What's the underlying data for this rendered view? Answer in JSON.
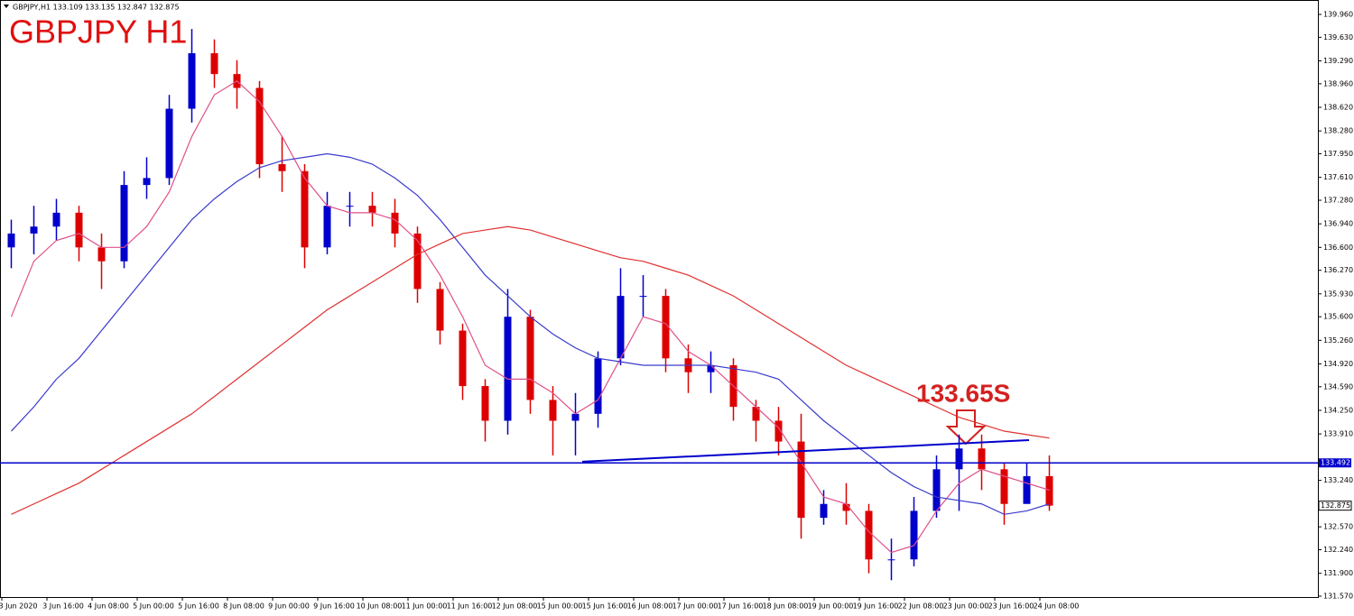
{
  "chart_data": {
    "type": "candlestick",
    "title": "GBPJPY H1",
    "header": "GBPJPY,H1  133.109 133.135 132.847 132.875",
    "annotation": "133.65S",
    "candles": {
      "open": [
        136.6,
        136.8,
        136.9,
        137.1,
        136.6,
        136.4,
        137.5,
        137.6,
        138.6,
        139.4,
        139.1,
        138.9,
        137.8,
        137.7,
        136.6,
        137.2,
        137.2,
        137.1,
        136.8,
        136.0,
        135.4,
        134.6,
        134.1,
        135.6,
        134.4,
        134.1,
        134.2,
        135.0,
        135.9,
        135.9,
        135.0,
        134.8,
        134.9,
        134.3,
        134.1,
        133.8,
        132.7,
        132.9,
        132.8,
        132.1,
        132.1,
        132.8,
        133.4,
        133.7,
        133.4,
        132.9,
        133.3
      ],
      "high": [
        137.0,
        137.2,
        137.3,
        137.2,
        136.8,
        137.7,
        137.9,
        138.8,
        139.75,
        139.6,
        139.3,
        139.0,
        138.2,
        137.8,
        137.4,
        137.4,
        137.4,
        137.3,
        136.9,
        136.1,
        135.5,
        134.7,
        136.0,
        135.7,
        134.6,
        134.5,
        135.1,
        136.3,
        136.2,
        136.0,
        135.2,
        135.1,
        135.0,
        134.4,
        134.3,
        134.2,
        133.1,
        133.2,
        132.9,
        132.4,
        133.0,
        133.6,
        133.9,
        133.9,
        133.5,
        133.5,
        133.6
      ],
      "low": [
        136.3,
        136.5,
        136.7,
        136.4,
        136.0,
        136.3,
        137.3,
        137.5,
        138.4,
        138.9,
        138.6,
        137.6,
        137.4,
        136.3,
        136.5,
        136.9,
        136.9,
        136.6,
        135.8,
        135.2,
        134.4,
        133.8,
        133.9,
        134.2,
        133.6,
        133.6,
        134.0,
        134.9,
        135.6,
        134.8,
        134.5,
        134.5,
        134.1,
        133.8,
        133.6,
        132.4,
        132.6,
        132.6,
        131.9,
        131.8,
        132.0,
        132.7,
        132.8,
        133.1,
        132.6,
        133.0,
        132.8
      ],
      "close": [
        136.8,
        136.9,
        137.1,
        136.6,
        136.4,
        137.5,
        137.6,
        138.6,
        139.4,
        139.1,
        138.9,
        137.8,
        137.7,
        136.6,
        137.2,
        137.2,
        137.1,
        136.8,
        136.0,
        135.4,
        134.6,
        134.1,
        135.6,
        134.4,
        134.1,
        134.2,
        135.0,
        135.9,
        135.9,
        135.0,
        134.8,
        134.9,
        134.3,
        134.1,
        133.8,
        132.7,
        132.9,
        132.8,
        132.1,
        132.1,
        132.8,
        133.4,
        133.7,
        133.4,
        132.9,
        133.3,
        132.875
      ],
      "up_color": "#0000cc",
      "down_color": "#dd0000"
    },
    "series": [
      {
        "color": "#e0508a",
        "values": [
          135.6,
          136.4,
          136.7,
          136.8,
          136.6,
          136.6,
          136.9,
          137.4,
          138.2,
          138.8,
          139.0,
          138.7,
          138.2,
          137.6,
          137.2,
          137.1,
          137.1,
          137.0,
          136.7,
          136.2,
          135.6,
          134.9,
          134.7,
          134.7,
          134.5,
          134.2,
          134.4,
          135.0,
          135.6,
          135.5,
          135.1,
          134.9,
          134.6,
          134.3,
          134.0,
          133.5,
          133.0,
          132.9,
          132.5,
          132.2,
          132.3,
          132.8,
          133.2,
          133.4,
          133.3,
          133.2,
          133.1
        ]
      },
      {
        "color": "#3a3acc",
        "values": [
          133.95,
          134.3,
          134.7,
          135.0,
          135.4,
          135.8,
          136.2,
          136.6,
          137.0,
          137.3,
          137.55,
          137.75,
          137.85,
          137.9,
          137.95,
          137.9,
          137.8,
          137.6,
          137.35,
          137.0,
          136.6,
          136.2,
          135.9,
          135.6,
          135.35,
          135.15,
          135.0,
          134.95,
          134.9,
          134.9,
          134.9,
          134.9,
          134.85,
          134.8,
          134.7,
          134.4,
          134.1,
          133.85,
          133.6,
          133.35,
          133.15,
          133.0,
          132.95,
          132.9,
          132.75,
          132.8,
          132.9
        ]
      },
      {
        "color": "#e03030",
        "values": [
          132.75,
          132.9,
          133.05,
          133.2,
          133.4,
          133.6,
          133.8,
          134.0,
          134.2,
          134.45,
          134.7,
          134.95,
          135.2,
          135.45,
          135.7,
          135.9,
          136.1,
          136.3,
          136.5,
          136.65,
          136.8,
          136.85,
          136.9,
          136.85,
          136.75,
          136.65,
          136.55,
          136.45,
          136.4,
          136.3,
          136.2,
          136.05,
          135.9,
          135.7,
          135.5,
          135.3,
          135.1,
          134.9,
          134.75,
          134.6,
          134.45,
          134.3,
          134.15,
          134.05,
          133.95,
          133.9,
          133.85
        ]
      }
    ],
    "hline": {
      "value": 133.492,
      "label": "133.492",
      "color": "#0000cc"
    },
    "last_price": {
      "value": 132.875,
      "label": "132.875"
    },
    "trendline": {
      "x": [
        25.3,
        45.1
      ],
      "y": [
        133.51,
        133.82
      ],
      "color": "#0000cc"
    },
    "ylim": [
      131.557,
      140.168
    ],
    "yticks": [
      {
        "value": 139.96,
        "label": "139.960"
      },
      {
        "value": 139.63,
        "label": "139.630"
      },
      {
        "value": 139.29,
        "label": "139.290"
      },
      {
        "value": 138.96,
        "label": "138.960"
      },
      {
        "value": 138.62,
        "label": "138.620"
      },
      {
        "value": 138.28,
        "label": "138.280"
      },
      {
        "value": 137.95,
        "label": "137.950"
      },
      {
        "value": 137.61,
        "label": "137.610"
      },
      {
        "value": 137.28,
        "label": "137.280"
      },
      {
        "value": 136.94,
        "label": "136.940"
      },
      {
        "value": 136.6,
        "label": "136.600"
      },
      {
        "value": 136.27,
        "label": "136.270"
      },
      {
        "value": 135.93,
        "label": "135.930"
      },
      {
        "value": 135.6,
        "label": "135.600"
      },
      {
        "value": 135.26,
        "label": "135.260"
      },
      {
        "value": 134.92,
        "label": "134.920"
      },
      {
        "value": 134.59,
        "label": "134.590"
      },
      {
        "value": 134.25,
        "label": "134.250"
      },
      {
        "value": 133.91,
        "label": "133.910"
      },
      {
        "value": 133.24,
        "label": "133.240"
      },
      {
        "value": 132.57,
        "label": "132.570"
      },
      {
        "value": 132.24,
        "label": "132.240"
      },
      {
        "value": 131.9,
        "label": "131.900"
      },
      {
        "value": 131.57,
        "label": "131.570"
      }
    ],
    "x_labels": [
      "3 Jun 2020",
      "3 Jun 16:00",
      "4 Jun 08:00",
      "5 Jun 00:00",
      "5 Jun 16:00",
      "8 Jun 08:00",
      "9 Jun 00:00",
      "9 Jun 16:00",
      "10 Jun 08:00",
      "11 Jun 00:00",
      "11 Jun 16:00",
      "12 Jun 08:00",
      "15 Jun 00:00",
      "15 Jun 16:00",
      "16 Jun 08:00",
      "17 Jun 00:00",
      "17 Jun 16:00",
      "18 Jun 08:00",
      "19 Jun 00:00",
      "19 Jun 16:00",
      "22 Jun 08:00",
      "23 Jun 00:00",
      "23 Jun 16:00",
      "24 Jun 08:00"
    ]
  }
}
